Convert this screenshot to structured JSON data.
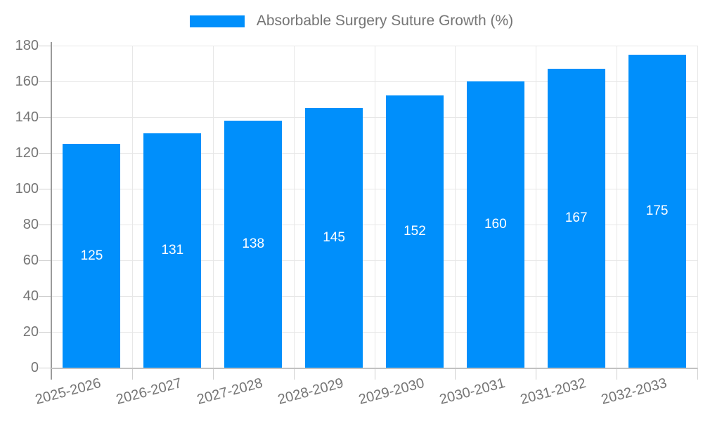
{
  "chart_data": {
    "type": "bar",
    "title": "Absorbable Surgery Suture Growth (%)",
    "categories": [
      "2025-2026",
      "2026-2027",
      "2027-2028",
      "2028-2029",
      "2029-2030",
      "2030-2031",
      "2031-2032",
      "2032-2033"
    ],
    "values": [
      125,
      131,
      138,
      145,
      152,
      160,
      167,
      175
    ],
    "xlabel": "",
    "ylabel": "",
    "ylim": [
      0,
      180
    ],
    "yticks": [
      0,
      20,
      40,
      60,
      80,
      100,
      120,
      140,
      160,
      180
    ],
    "grid": true,
    "legend_position": "top-center",
    "value_label_position": "inside-center"
  },
  "legend": {
    "swatch_color": "#008FFB",
    "label": "Absorbable Surgery Suture Growth (%)"
  },
  "colors": {
    "bar": "#008FFB",
    "bar_value_text": "#ffffff",
    "axis_text": "#757575",
    "legend_text": "#757575",
    "gridline": "#e7e7e7",
    "y_axis_line": "#9a9a9a",
    "x_axis_line": "#c2c2c2",
    "tick": "#cfcfcf",
    "background": "#ffffff"
  }
}
